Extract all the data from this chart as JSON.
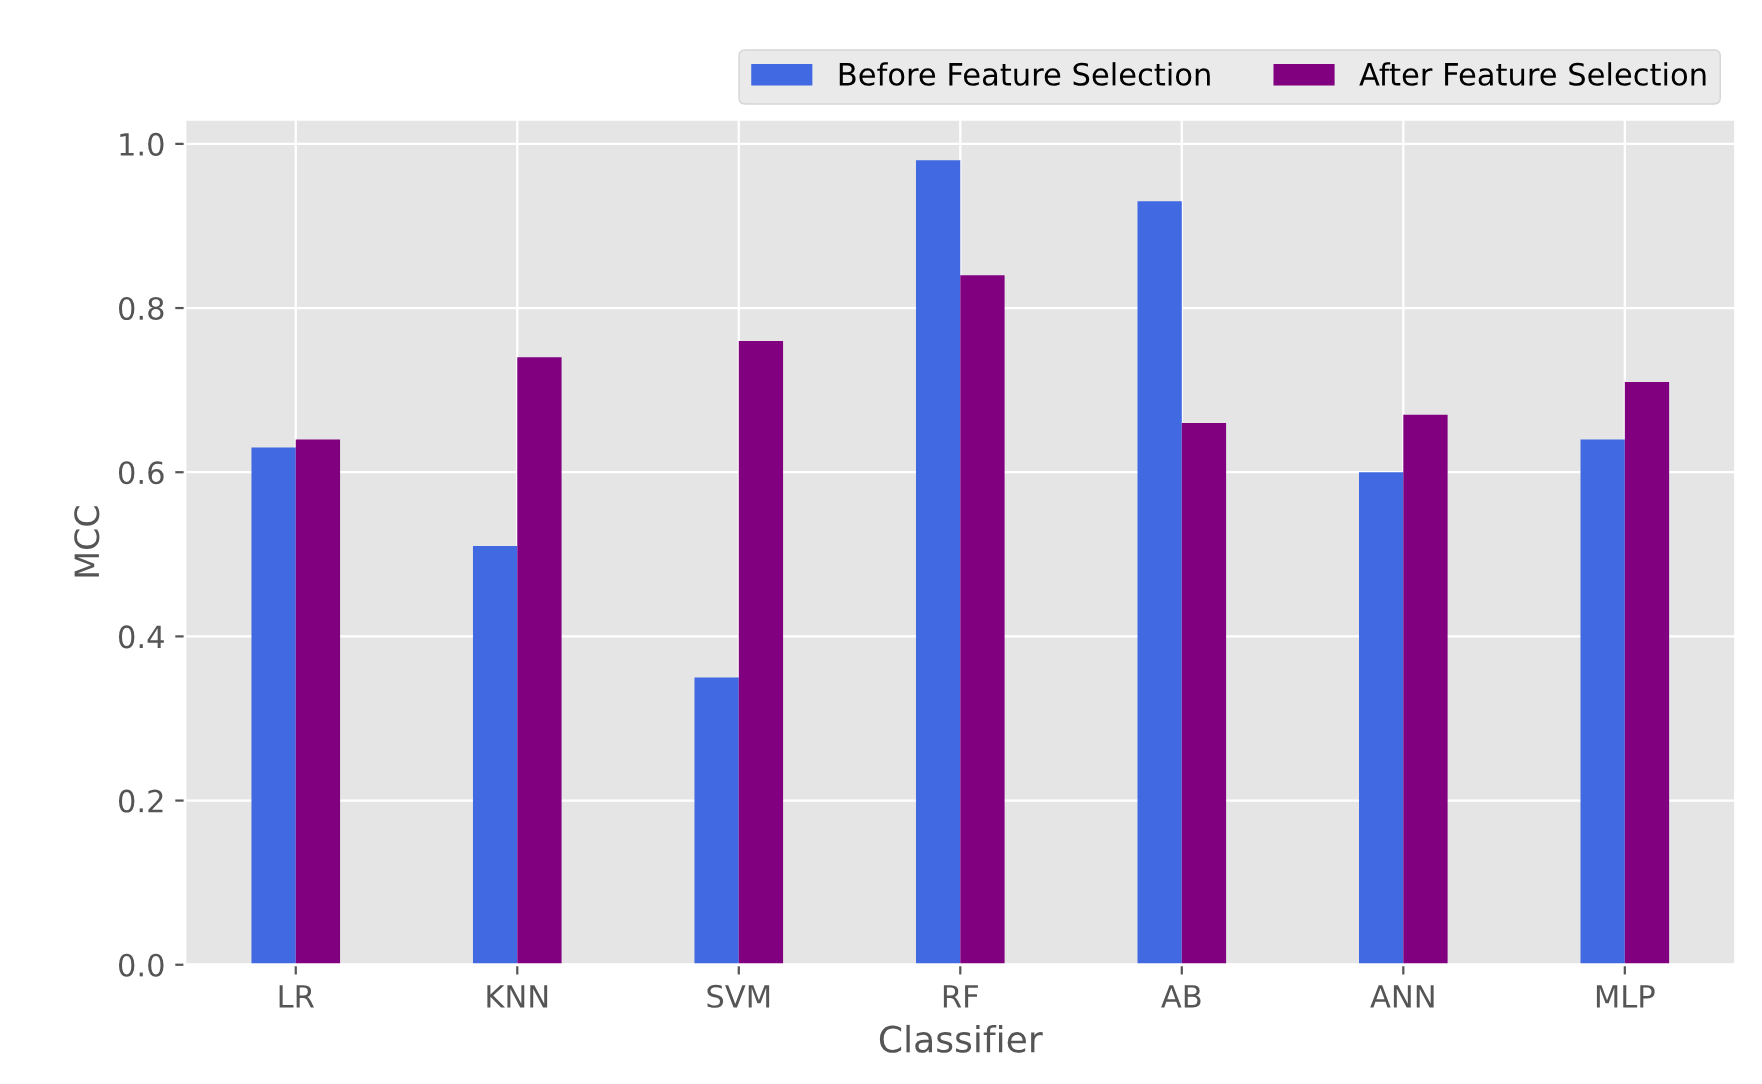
{
  "chart_data": {
    "type": "bar",
    "xlabel": "Classifier",
    "ylabel": "MCC",
    "categories": [
      "LR",
      "KNN",
      "SVM",
      "RF",
      "AB",
      "ANN",
      "MLP"
    ],
    "series": [
      {
        "name": "Before Feature Selection",
        "color": "#4169e1",
        "values": [
          0.63,
          0.51,
          0.35,
          0.98,
          0.93,
          0.6,
          0.64
        ]
      },
      {
        "name": "After Feature Selection",
        "color": "#800080",
        "values": [
          0.64,
          0.74,
          0.76,
          0.84,
          0.66,
          0.67,
          0.71
        ]
      }
    ],
    "ylim": [
      0,
      1.03
    ],
    "yticks": [
      {
        "value": 0,
        "label": "0.0"
      },
      {
        "value": 0.2,
        "label": "0.2"
      },
      {
        "value": 0.4,
        "label": "0.4"
      },
      {
        "value": 0.6,
        "label": "0.6"
      },
      {
        "value": 0.8,
        "label": "0.8"
      },
      {
        "value": 1,
        "label": "1.0"
      }
    ],
    "grid": true,
    "legend": "top right"
  }
}
